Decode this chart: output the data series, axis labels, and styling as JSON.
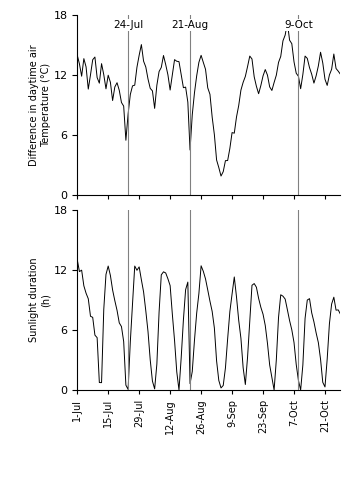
{
  "vline_labels": [
    "24-Jul",
    "21-Aug",
    "9-Oct"
  ],
  "x_tick_labels": [
    "1-Jul",
    "15-Jul",
    "29-Jul",
    "12-Aug",
    "26-Aug",
    "9-Sep",
    "23-Sep",
    "7-Oct",
    "21-Oct"
  ],
  "ylim_temp": [
    0,
    18
  ],
  "ylim_sun": [
    0,
    18
  ],
  "yticks": [
    0,
    6,
    12,
    18
  ],
  "ylabel_top": "Difference in daytime air\nTemperature (°C)",
  "ylabel_bot": "Sunlight duration\n(h)",
  "line_color": "#000000",
  "vline_color": "#808080",
  "background": "#ffffff"
}
